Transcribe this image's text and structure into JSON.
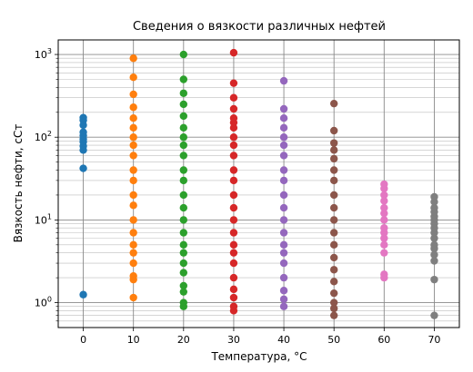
{
  "chart_data": {
    "type": "scatter",
    "title": "Сведения о вязкости различных нефтей",
    "xlabel": "Температура, °C",
    "ylabel": "Вязкость нефти, сСт",
    "xlim": [
      -5,
      75
    ],
    "ylim": [
      0.5,
      1500
    ],
    "y_scale": "log",
    "grid": true,
    "x_ticks": [
      0,
      10,
      20,
      30,
      40,
      50,
      60,
      70
    ],
    "x_tick_labels": [
      "0",
      "10",
      "20",
      "30",
      "40",
      "50",
      "60",
      "70"
    ],
    "y_ticks": [
      1,
      10,
      100,
      1000
    ],
    "y_tick_base": "10",
    "y_tick_exponents": [
      "0",
      "1",
      "2",
      "3"
    ],
    "series": [
      {
        "x": 0,
        "color": "#1f77b4",
        "values": [
          1.25,
          42,
          70,
          78,
          88,
          95,
          105,
          115,
          140,
          160,
          172
        ]
      },
      {
        "x": 10,
        "color": "#ff7f0e",
        "values": [
          1.15,
          1.9,
          2.1,
          3,
          4,
          5,
          7,
          10,
          15,
          20,
          30,
          40,
          60,
          80,
          100,
          130,
          170,
          230,
          330,
          530,
          900
        ]
      },
      {
        "x": 20,
        "color": "#2ca02c",
        "values": [
          0.9,
          1,
          1.35,
          1.6,
          2.3,
          3,
          4,
          5,
          7,
          10,
          14,
          20,
          30,
          40,
          60,
          80,
          100,
          130,
          180,
          250,
          340,
          500,
          1000
        ]
      },
      {
        "x": 30,
        "color": "#d62728",
        "values": [
          0.8,
          0.9,
          1.15,
          1.45,
          2,
          3,
          4,
          5,
          7,
          10,
          14,
          20,
          30,
          40,
          60,
          80,
          100,
          130,
          150,
          170,
          220,
          300,
          450,
          1050
        ]
      },
      {
        "x": 40,
        "color": "#9467bd",
        "values": [
          0.9,
          1.1,
          1.4,
          2,
          3,
          4,
          5,
          7,
          10,
          14,
          20,
          30,
          40,
          60,
          80,
          100,
          130,
          170,
          220,
          480
        ]
      },
      {
        "x": 50,
        "color": "#8c564b",
        "values": [
          0.7,
          0.85,
          1,
          1.3,
          1.8,
          2.5,
          3.5,
          5,
          7,
          10,
          14,
          20,
          30,
          40,
          55,
          70,
          85,
          120,
          255
        ]
      },
      {
        "x": 60,
        "color": "#e377c2",
        "values": [
          2,
          2.2,
          4,
          5,
          6,
          7,
          8,
          10,
          12,
          14,
          17,
          20,
          24,
          27
        ]
      },
      {
        "x": 70,
        "color": "#7f7f7f",
        "values": [
          0.7,
          1.9,
          3.2,
          3.8,
          4.5,
          5,
          6,
          7,
          8,
          9,
          10,
          11,
          12.5,
          14,
          16.5,
          19
        ]
      }
    ]
  }
}
